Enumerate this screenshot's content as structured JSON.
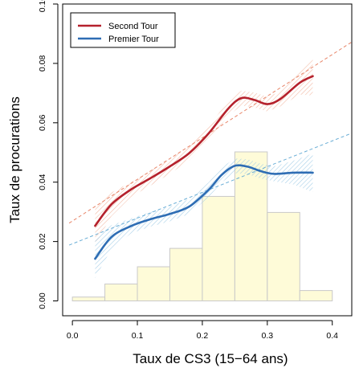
{
  "chart_data": {
    "type": "line",
    "xlabel": "Taux de CS3 (15−64 ans)",
    "ylabel": "Taux de procurations",
    "xlim": [
      -0.015,
      0.43
    ],
    "ylim": [
      -0.005,
      0.1
    ],
    "x_ticks": [
      "0.0",
      "0.1",
      "0.2",
      "0.3",
      "0.4"
    ],
    "x_tick_values": [
      0,
      0.1,
      0.2,
      0.3,
      0.4
    ],
    "y_ticks": [
      "0.00",
      "0.02",
      "0.04",
      "0.06",
      "0.08",
      "0.10"
    ],
    "y_tick_values": [
      0,
      0.02,
      0.04,
      0.06,
      0.08,
      0.1
    ],
    "grid": false,
    "legend_position": "top-left",
    "series": [
      {
        "name": "Second Tour",
        "color": "#b5212c",
        "trend_color": "#e8866a",
        "x": [
          0.035,
          0.06,
          0.09,
          0.12,
          0.15,
          0.18,
          0.21,
          0.24,
          0.26,
          0.28,
          0.3,
          0.32,
          0.35,
          0.37
        ],
        "y": [
          0.0253,
          0.0325,
          0.0375,
          0.0413,
          0.0453,
          0.0498,
          0.0565,
          0.0648,
          0.0683,
          0.0677,
          0.0663,
          0.068,
          0.0735,
          0.0757
        ],
        "trend": {
          "x": [
            -0.005,
            0.43
          ],
          "y": [
            0.0262,
            0.0872
          ]
        }
      },
      {
        "name": "Premier Tour",
        "color": "#2e6db4",
        "trend_color": "#6aaed6",
        "x": [
          0.035,
          0.06,
          0.09,
          0.12,
          0.15,
          0.18,
          0.21,
          0.23,
          0.25,
          0.27,
          0.29,
          0.31,
          0.34,
          0.37
        ],
        "y": [
          0.0142,
          0.0215,
          0.0252,
          0.0275,
          0.0293,
          0.0318,
          0.0375,
          0.0425,
          0.0455,
          0.0452,
          0.0437,
          0.0428,
          0.0432,
          0.0432
        ],
        "trend": {
          "x": [
            -0.005,
            0.43
          ],
          "y": [
            0.0188,
            0.0565
          ]
        }
      }
    ],
    "histogram": {
      "fill": "#fefbd8",
      "edges": [
        0.0,
        0.05,
        0.1,
        0.15,
        0.2,
        0.25,
        0.3,
        0.35,
        0.4
      ],
      "heights": [
        0.0013,
        0.0057,
        0.0115,
        0.0177,
        0.0352,
        0.0502,
        0.0298,
        0.0035
      ]
    }
  }
}
